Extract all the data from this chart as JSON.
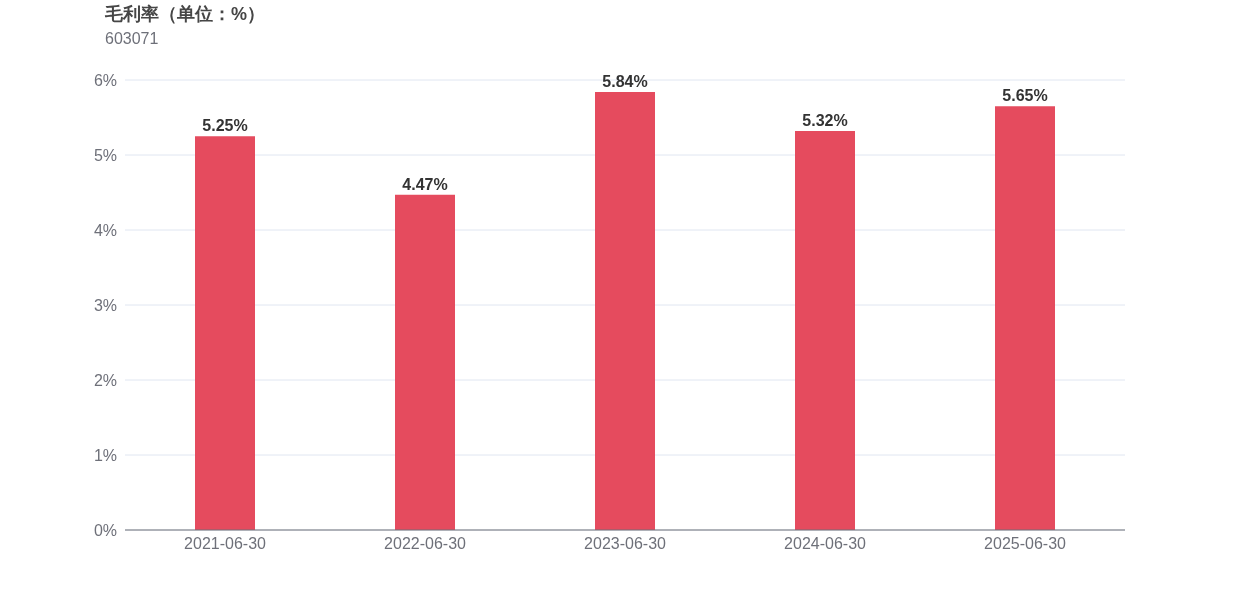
{
  "chart_data": {
    "type": "bar",
    "title": "毛利率（单位：%）",
    "subtitle": "603071",
    "categories": [
      "2021-06-30",
      "2022-06-30",
      "2023-06-30",
      "2024-06-30",
      "2025-06-30"
    ],
    "values": [
      5.25,
      4.47,
      5.84,
      5.32,
      5.65
    ],
    "color": "#e54b5e",
    "value_labels": [
      "5.25%",
      "4.47%",
      "5.84%",
      "5.32%",
      "5.65%"
    ],
    "ylim": [
      0,
      6
    ],
    "yticks": [
      {
        "value": 0,
        "label": "0%"
      },
      {
        "value": 1,
        "label": "1%"
      },
      {
        "value": 2,
        "label": "2%"
      },
      {
        "value": 3,
        "label": "3%"
      },
      {
        "value": 4,
        "label": "4%"
      },
      {
        "value": 5,
        "label": "5%"
      },
      {
        "value": 6,
        "label": "6%"
      }
    ],
    "grid": "y",
    "legend": false
  }
}
